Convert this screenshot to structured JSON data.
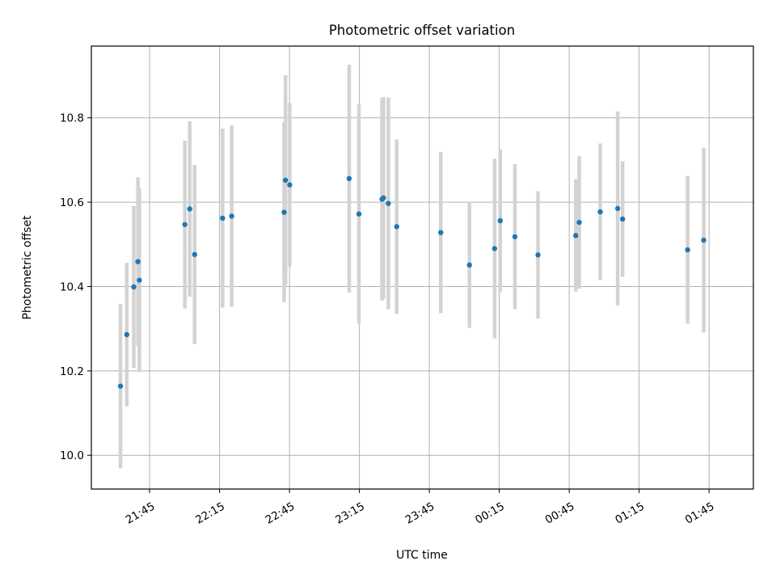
{
  "chart_data": {
    "type": "scatter",
    "title": "Photometric offset variation",
    "xlabel": "UTC time",
    "ylabel": "Photometric offset",
    "xlim": [
      "21:20",
      "02:04"
    ],
    "ylim": [
      9.92,
      10.97
    ],
    "x_ticks": [
      "21:45",
      "22:15",
      "22:45",
      "23:15",
      "23:45",
      "00:15",
      "00:45",
      "01:15",
      "01:45"
    ],
    "y_ticks": [
      "10.0",
      "10.2",
      "10.4",
      "10.6",
      "10.8"
    ],
    "grid": true,
    "legend": "none",
    "colors": {
      "point": "#1f77b4",
      "errorbar": "#d3d3d3",
      "grid": "#b0b0b0"
    },
    "series": [
      {
        "points": [
          {
            "time": "21:32.5",
            "value": 10.164,
            "err": 0.195
          },
          {
            "time": "21:35.2",
            "value": 10.286,
            "err": 0.17
          },
          {
            "time": "21:38.2",
            "value": 10.399,
            "err": 0.192
          },
          {
            "time": "21:40.0",
            "value": 10.459,
            "err": 0.2
          },
          {
            "time": "21:40.6",
            "value": 10.415,
            "err": 0.218
          },
          {
            "time": "22:00.1",
            "value": 10.547,
            "err": 0.199
          },
          {
            "time": "22:02.2",
            "value": 10.584,
            "err": 0.208
          },
          {
            "time": "22:04.3",
            "value": 10.476,
            "err": 0.212
          },
          {
            "time": "22:16.3",
            "value": 10.562,
            "err": 0.212
          },
          {
            "time": "22:20.2",
            "value": 10.567,
            "err": 0.215
          },
          {
            "time": "22:42.7",
            "value": 10.576,
            "err": 0.213
          },
          {
            "time": "22:43.3",
            "value": 10.652,
            "err": 0.249
          },
          {
            "time": "22:45.1",
            "value": 10.641,
            "err": 0.194
          },
          {
            "time": "23:10.6",
            "value": 10.656,
            "err": 0.27
          },
          {
            "time": "23:14.8",
            "value": 10.572,
            "err": 0.26
          },
          {
            "time": "23:24.7",
            "value": 10.607,
            "err": 0.24
          },
          {
            "time": "23:25.3",
            "value": 10.61,
            "err": 0.239
          },
          {
            "time": "23:27.4",
            "value": 10.597,
            "err": 0.251
          },
          {
            "time": "23:31.0",
            "value": 10.542,
            "err": 0.207
          },
          {
            "time": "23:49.9",
            "value": 10.528,
            "err": 0.191
          },
          {
            "time": "00:02.2",
            "value": 10.451,
            "err": 0.149
          },
          {
            "time": "00:13.0",
            "value": 10.49,
            "err": 0.213
          },
          {
            "time": "00:15.4",
            "value": 10.556,
            "err": 0.17
          },
          {
            "time": "00:21.7",
            "value": 10.518,
            "err": 0.172
          },
          {
            "time": "00:31.6",
            "value": 10.475,
            "err": 0.151
          },
          {
            "time": "00:47.8",
            "value": 10.521,
            "err": 0.133
          },
          {
            "time": "00:49.3",
            "value": 10.552,
            "err": 0.157
          },
          {
            "time": "00:58.3",
            "value": 10.577,
            "err": 0.162
          },
          {
            "time": "01:05.8",
            "value": 10.585,
            "err": 0.23
          },
          {
            "time": "01:07.9",
            "value": 10.56,
            "err": 0.137
          },
          {
            "time": "01:35.8",
            "value": 10.487,
            "err": 0.175
          },
          {
            "time": "01:42.7",
            "value": 10.51,
            "err": 0.219
          }
        ]
      }
    ]
  }
}
